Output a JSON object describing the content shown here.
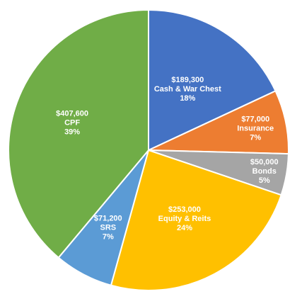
{
  "chart_data": {
    "type": "pie",
    "title": "",
    "slices": [
      {
        "name": "Cash & War Chest",
        "value": 189300,
        "value_label": "$189,300",
        "percent_label": "18%",
        "color": "#4472C4"
      },
      {
        "name": "Insurance",
        "value": 77000,
        "value_label": "$77,000",
        "percent_label": "7%",
        "color": "#ED7D31"
      },
      {
        "name": "Bonds",
        "value": 50000,
        "value_label": "$50,000",
        "percent_label": "5%",
        "color": "#A5A5A5"
      },
      {
        "name": "Equity & Reits",
        "value": 253000,
        "value_label": "$253,000",
        "percent_label": "24%",
        "color": "#FFC000"
      },
      {
        "name": "SRS",
        "value": 71200,
        "value_label": "$71,200",
        "percent_label": "7%",
        "color": "#5B9BD5"
      },
      {
        "name": "CPF",
        "value": 407600,
        "value_label": "$407,600",
        "percent_label": "39%",
        "color": "#70AD47"
      }
    ]
  }
}
